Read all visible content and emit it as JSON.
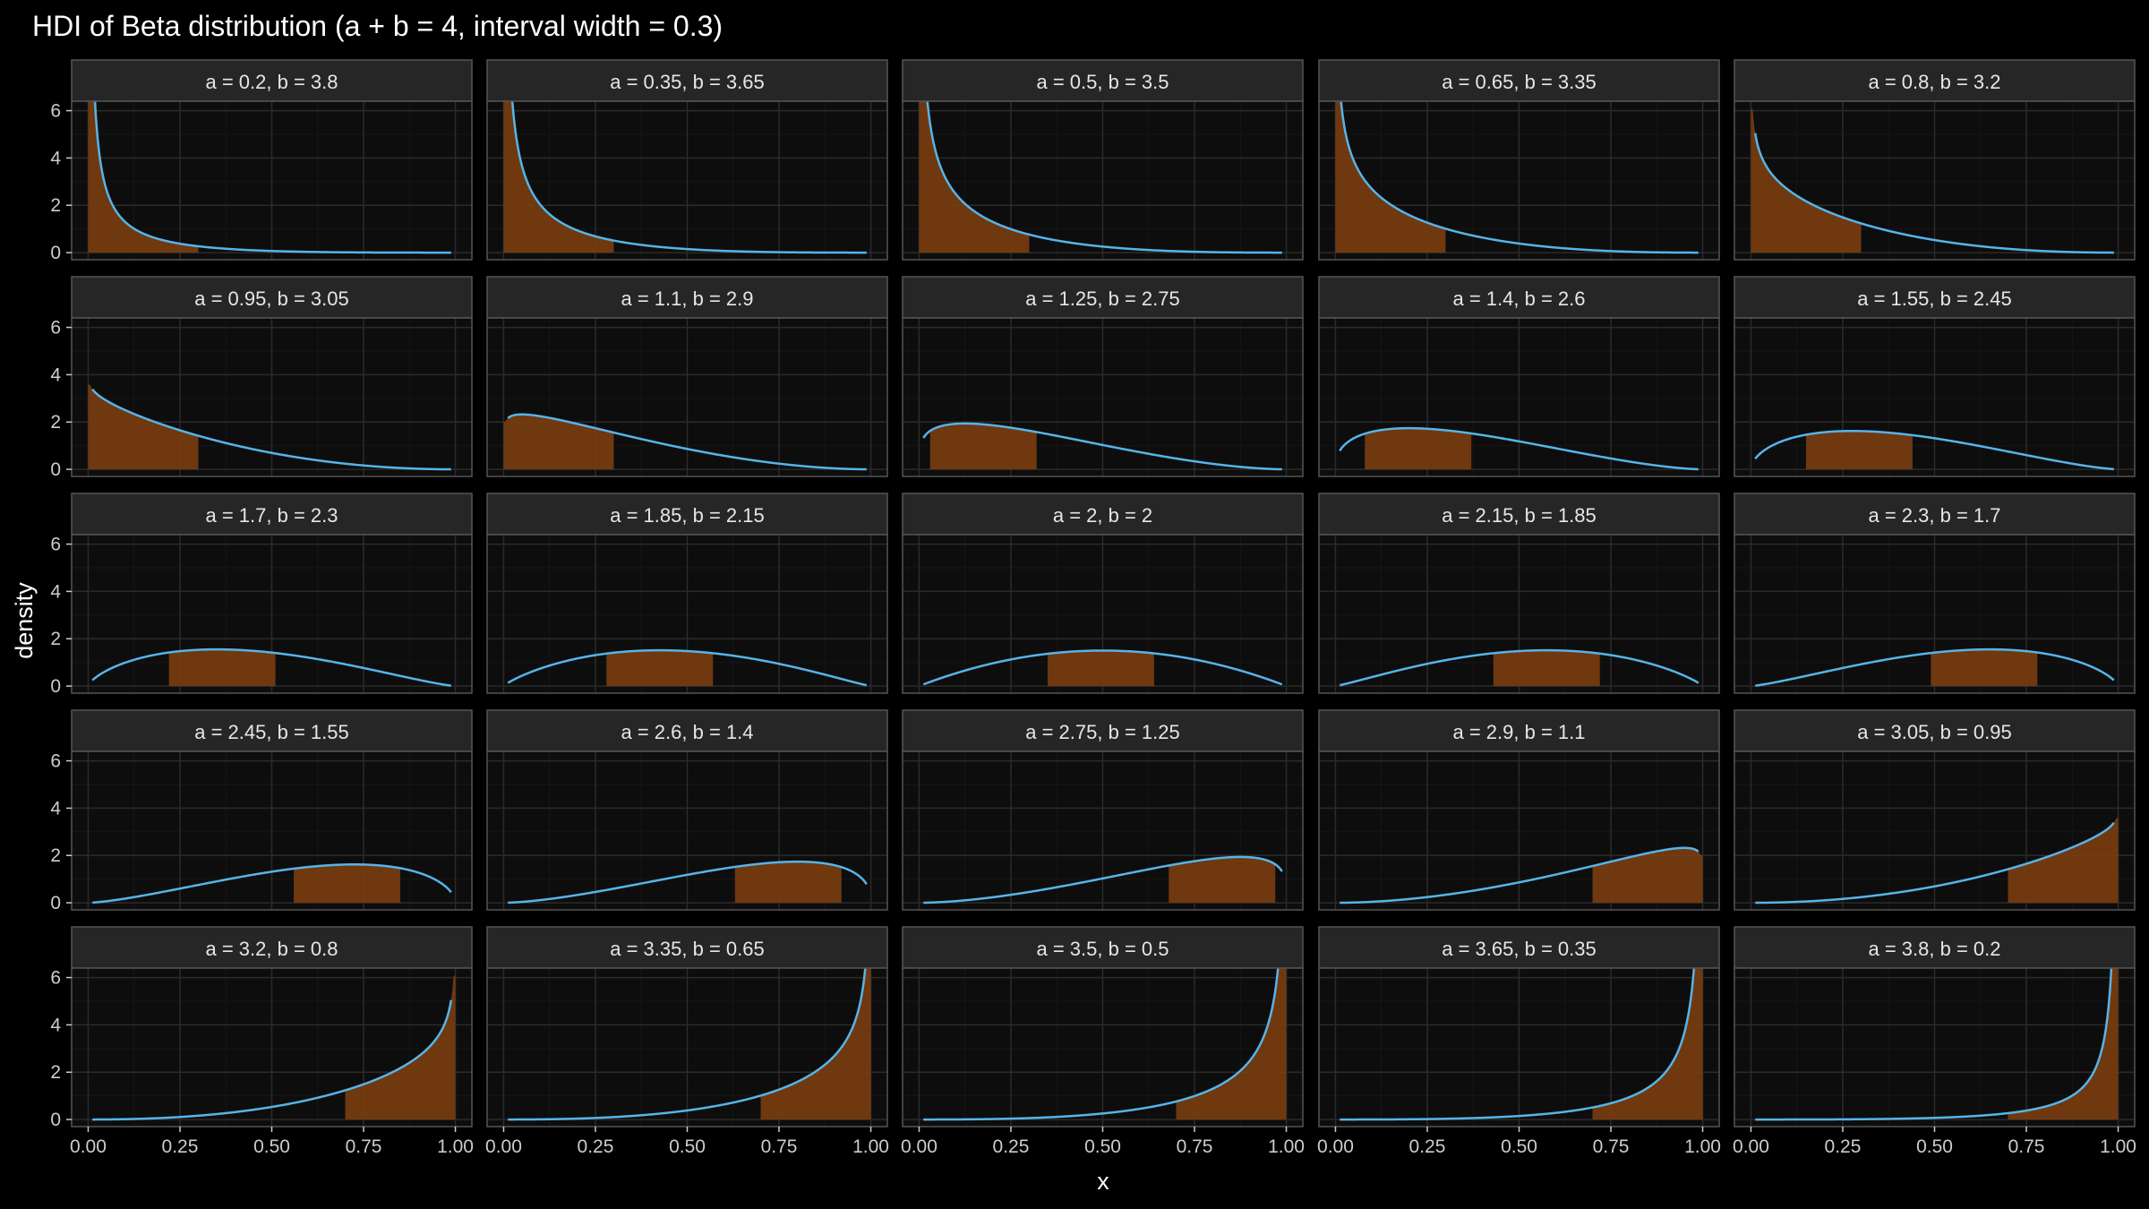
{
  "chart_data": {
    "type": "area",
    "title": "HDI of Beta distribution (a + b = 4, interval width = 0.3)",
    "xlabel": "x",
    "ylabel": "density",
    "xlim": [
      0,
      1
    ],
    "ylim": [
      0,
      6
    ],
    "x_ticks": [
      0,
      0.25,
      0.5,
      0.75,
      1.0
    ],
    "x_tick_labels": [
      "0.00",
      "0.25",
      "0.50",
      "0.75",
      "1.00"
    ],
    "y_ticks": [
      0,
      2,
      4,
      6
    ],
    "y_tick_labels": [
      "0",
      "2",
      "4",
      "6"
    ],
    "layout": "facet grid, 5 rows x 5 columns",
    "grid": true,
    "theme": "dark",
    "colors": {
      "background": "#000000",
      "panel": "#0d0d0d",
      "grid_major": "#2b2b2b",
      "grid_minor": "#161616",
      "strip": "#262626",
      "strip_text": "#e6e6e6",
      "curve": "#56b4e9",
      "hdi_fill": "#7a3d10",
      "text": "#e6e6e6",
      "tick_text": "#cccccc"
    },
    "series": [
      {
        "label": "a = 0.2, b = 3.8",
        "a": 0.2,
        "b": 3.8,
        "hdi": [
          0.0,
          0.3
        ]
      },
      {
        "label": "a = 0.35, b = 3.65",
        "a": 0.35,
        "b": 3.65,
        "hdi": [
          0.0,
          0.3
        ]
      },
      {
        "label": "a = 0.5, b = 3.5",
        "a": 0.5,
        "b": 3.5,
        "hdi": [
          0.0,
          0.3
        ]
      },
      {
        "label": "a = 0.65, b = 3.35",
        "a": 0.65,
        "b": 3.35,
        "hdi": [
          0.0,
          0.3
        ]
      },
      {
        "label": "a = 0.8, b = 3.2",
        "a": 0.8,
        "b": 3.2,
        "hdi": [
          0.0,
          0.3
        ]
      },
      {
        "label": "a = 0.95, b = 3.05",
        "a": 0.95,
        "b": 3.05,
        "hdi": [
          0.0,
          0.3
        ]
      },
      {
        "label": "a = 1.1, b = 2.9",
        "a": 1.1,
        "b": 2.9,
        "hdi": [
          0.0,
          0.3
        ]
      },
      {
        "label": "a = 1.25, b = 2.75",
        "a": 1.25,
        "b": 2.75,
        "hdi": [
          0.03,
          0.32
        ]
      },
      {
        "label": "a = 1.4, b = 2.6",
        "a": 1.4,
        "b": 2.6,
        "hdi": [
          0.08,
          0.37
        ]
      },
      {
        "label": "a = 1.55, b = 2.45",
        "a": 1.55,
        "b": 2.45,
        "hdi": [
          0.15,
          0.44
        ]
      },
      {
        "label": "a = 1.7, b = 2.3",
        "a": 1.7,
        "b": 2.3,
        "hdi": [
          0.22,
          0.51
        ]
      },
      {
        "label": "a = 1.85, b = 2.15",
        "a": 1.85,
        "b": 2.15,
        "hdi": [
          0.28,
          0.57
        ]
      },
      {
        "label": "a = 2, b = 2",
        "a": 2.0,
        "b": 2.0,
        "hdi": [
          0.35,
          0.64
        ]
      },
      {
        "label": "a = 2.15, b = 1.85",
        "a": 2.15,
        "b": 1.85,
        "hdi": [
          0.43,
          0.72
        ]
      },
      {
        "label": "a = 2.3, b = 1.7",
        "a": 2.3,
        "b": 1.7,
        "hdi": [
          0.49,
          0.78
        ]
      },
      {
        "label": "a = 2.45, b = 1.55",
        "a": 2.45,
        "b": 1.55,
        "hdi": [
          0.56,
          0.85
        ]
      },
      {
        "label": "a = 2.6, b = 1.4",
        "a": 2.6,
        "b": 1.4,
        "hdi": [
          0.63,
          0.92
        ]
      },
      {
        "label": "a = 2.75, b = 1.25",
        "a": 2.75,
        "b": 1.25,
        "hdi": [
          0.68,
          0.97
        ]
      },
      {
        "label": "a = 2.9, b = 1.1",
        "a": 2.9,
        "b": 1.1,
        "hdi": [
          0.7,
          1.0
        ]
      },
      {
        "label": "a = 3.05, b = 0.95",
        "a": 3.05,
        "b": 0.95,
        "hdi": [
          0.7,
          1.0
        ]
      },
      {
        "label": "a = 3.2, b = 0.8",
        "a": 3.2,
        "b": 0.8,
        "hdi": [
          0.7,
          1.0
        ]
      },
      {
        "label": "a = 3.35, b = 0.65",
        "a": 3.35,
        "b": 0.65,
        "hdi": [
          0.7,
          1.0
        ]
      },
      {
        "label": "a = 3.5, b = 0.5",
        "a": 3.5,
        "b": 0.5,
        "hdi": [
          0.7,
          1.0
        ]
      },
      {
        "label": "a = 3.65, b = 0.35",
        "a": 3.65,
        "b": 0.35,
        "hdi": [
          0.7,
          1.0
        ]
      },
      {
        "label": "a = 3.8, b = 0.2",
        "a": 3.8,
        "b": 0.2,
        "hdi": [
          0.7,
          1.0
        ]
      }
    ]
  }
}
